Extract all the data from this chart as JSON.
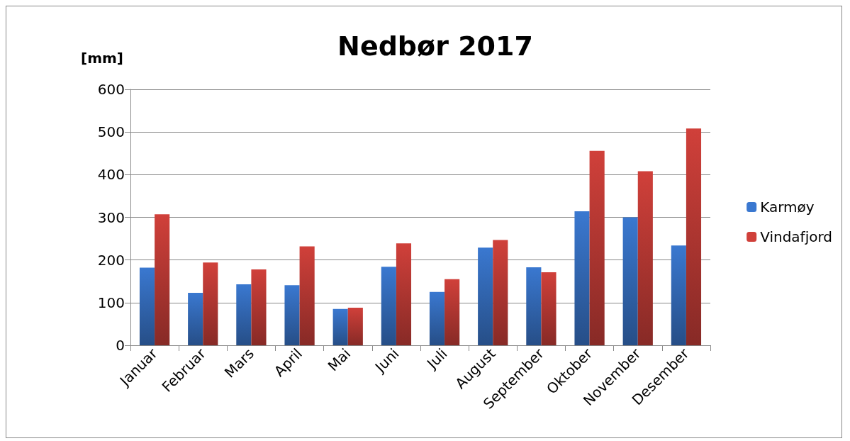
{
  "chart_data": {
    "type": "bar",
    "title": "Nedbør 2017",
    "ylabel": "[mm]",
    "categories": [
      "Januar",
      "Februar",
      "Mars",
      "April",
      "Mai",
      "Juni",
      "Juli",
      "August",
      "September",
      "Oktober",
      "November",
      "Desember"
    ],
    "series": [
      {
        "name": "Karmøy",
        "color": "#3a78d0",
        "values": [
          182,
          123,
          143,
          141,
          85,
          184,
          125,
          229,
          183,
          314,
          300,
          234
        ]
      },
      {
        "name": "Vindafjord",
        "color": "#d0403a",
        "values": [
          307,
          194,
          178,
          232,
          88,
          239,
          155,
          247,
          171,
          456,
          408,
          508
        ]
      }
    ],
    "ylim": [
      0,
      600
    ],
    "yticks": [
      0,
      100,
      200,
      300,
      400,
      500,
      600
    ],
    "grid": "y",
    "legend": "right"
  }
}
